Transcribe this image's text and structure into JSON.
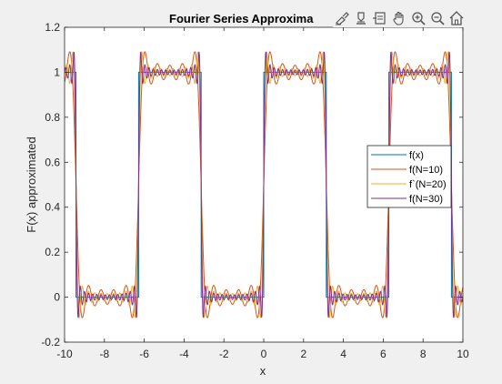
{
  "chart_data": {
    "type": "line",
    "title": "Fourier Series Approxima",
    "xlabel": "x",
    "ylabel": "F(x) approximated",
    "xlim": [
      -10,
      10
    ],
    "ylim": [
      -0.2,
      1.2
    ],
    "xticks": [
      -10,
      -8,
      -6,
      -4,
      -2,
      0,
      2,
      4,
      6,
      8,
      10
    ],
    "yticks": [
      -0.2,
      0,
      0.2,
      0.4,
      0.6,
      0.8,
      1,
      1.2
    ],
    "xticklabels": [
      "-10",
      "-8",
      "-6",
      "-4",
      "-2",
      "0",
      "2",
      "4",
      "6",
      "8",
      "10"
    ],
    "yticklabels": [
      "-0.2",
      "0",
      "0.2",
      "0.4",
      "0.6",
      "0.8",
      "1",
      "1.2"
    ],
    "grid": false,
    "legend_position": "right",
    "function": {
      "description": "square wave with period 2*pi, value 1 on [0, pi) and 0 on [pi, 2*pi)",
      "period": 6.2832,
      "high_value": 1,
      "low_value": 0,
      "high_interval": [
        0,
        3.1416
      ]
    },
    "series": [
      {
        "name": "f(x)",
        "color": "#0072BD",
        "kind": "exact"
      },
      {
        "name": "f(N=10)",
        "color": "#D95319",
        "kind": "partial_sum",
        "N": 10
      },
      {
        "name": "f`(N=20)",
        "color": "#EDB120",
        "kind": "partial_sum",
        "N": 20
      },
      {
        "name": "f(N=30)",
        "color": "#7E2F8E",
        "kind": "partial_sum",
        "N": 30
      }
    ]
  },
  "toolbar": {
    "icons": [
      "brush-icon",
      "data-tip-icon",
      "export-icon",
      "pan-hand-icon",
      "zoom-in-icon",
      "zoom-out-icon",
      "home-icon"
    ]
  }
}
